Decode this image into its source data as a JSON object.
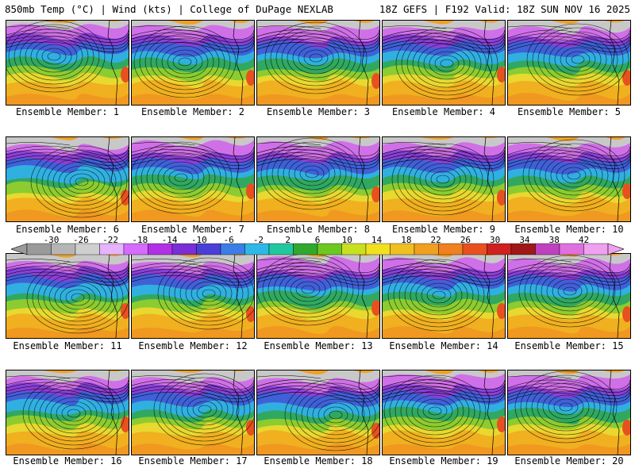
{
  "header": {
    "left": "850mb Temp (°C) | Wind (kts) | College of DuPage NEXLAB",
    "right": "18Z GEFS | F192 Valid: 18Z SUN NOV 16 2025"
  },
  "colorbar": {
    "labels": [
      "-30",
      "-26",
      "-22",
      "-18",
      "-14",
      "-10",
      "-6",
      "-2",
      "2",
      "6",
      "10",
      "14",
      "18",
      "22",
      "26",
      "30",
      "34",
      "38",
      "42"
    ],
    "colors": [
      "#9a9a9a",
      "#b5b5b5",
      "#cfcfcf",
      "#e6b3ff",
      "#d66bff",
      "#b030e6",
      "#7a2ed6",
      "#4a40d8",
      "#3c7ee6",
      "#2fb8e6",
      "#20c8a0",
      "#30a830",
      "#6cc820",
      "#c8e020",
      "#f0e020",
      "#f0c020",
      "#f0a020",
      "#f08020",
      "#e85020",
      "#d02020",
      "#a01818",
      "#c040c0",
      "#e070e0",
      "#f0a0f0"
    ]
  },
  "members": [
    {
      "caption": "Ensemble Member: 1"
    },
    {
      "caption": "Ensemble Member: 2"
    },
    {
      "caption": "Ensemble Member: 3"
    },
    {
      "caption": "Ensemble Member: 4"
    },
    {
      "caption": "Ensemble Member: 5"
    },
    {
      "caption": "Ensemble Member: 6"
    },
    {
      "caption": "Ensemble Member: 7"
    },
    {
      "caption": "Ensemble Member: 8"
    },
    {
      "caption": "Ensemble Member: 9"
    },
    {
      "caption": "Ensemble Member: 10"
    },
    {
      "caption": "Ensemble Member: 11"
    },
    {
      "caption": "Ensemble Member: 12"
    },
    {
      "caption": "Ensemble Member: 13"
    },
    {
      "caption": "Ensemble Member: 14"
    },
    {
      "caption": "Ensemble Member: 15"
    },
    {
      "caption": "Ensemble Member: 16"
    },
    {
      "caption": "Ensemble Member: 17"
    },
    {
      "caption": "Ensemble Member: 18"
    },
    {
      "caption": "Ensemble Member: 19"
    },
    {
      "caption": "Ensemble Member: 20"
    }
  ]
}
